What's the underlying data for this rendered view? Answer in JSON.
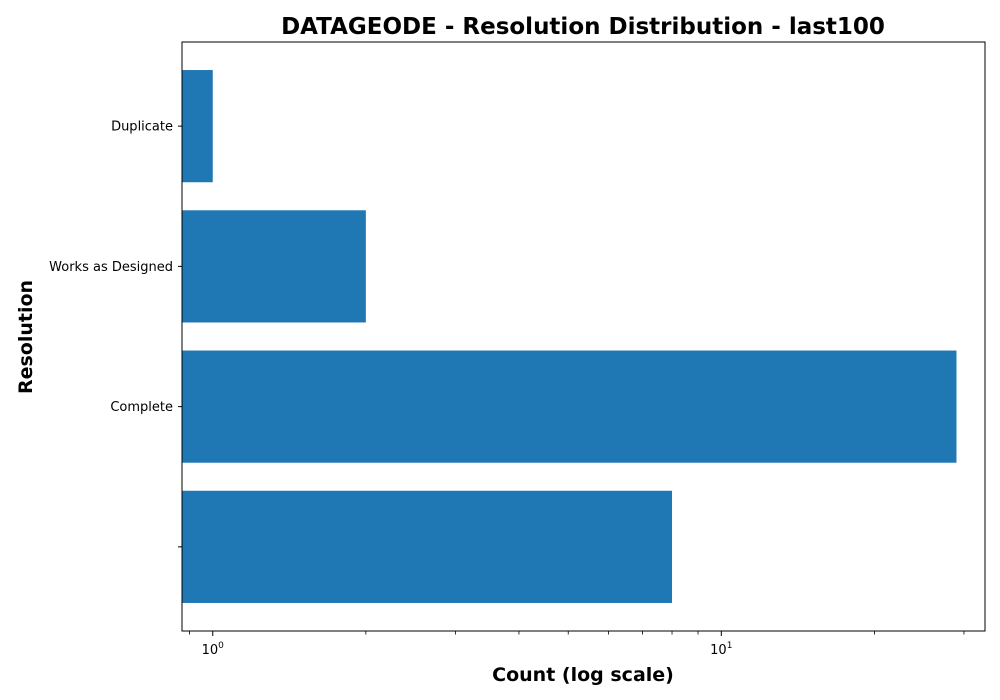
{
  "chart_data": {
    "type": "bar",
    "orientation": "horizontal",
    "title": "DATAGEODE - Resolution Distribution - last100",
    "xlabel": "Count (log scale)",
    "ylabel": "Resolution",
    "x_scale": "log",
    "xlim": [
      0.87,
      33
    ],
    "x_major_ticks": [
      {
        "base": "10",
        "exp": "0",
        "value": 1
      },
      {
        "base": "10",
        "exp": "1",
        "value": 10
      }
    ],
    "categories": [
      "",
      "Complete",
      "Works as Designed",
      "Duplicate"
    ],
    "values": [
      8,
      29,
      2,
      1
    ],
    "bar_color": "#1f77b4",
    "grid": false,
    "legend": "none"
  }
}
